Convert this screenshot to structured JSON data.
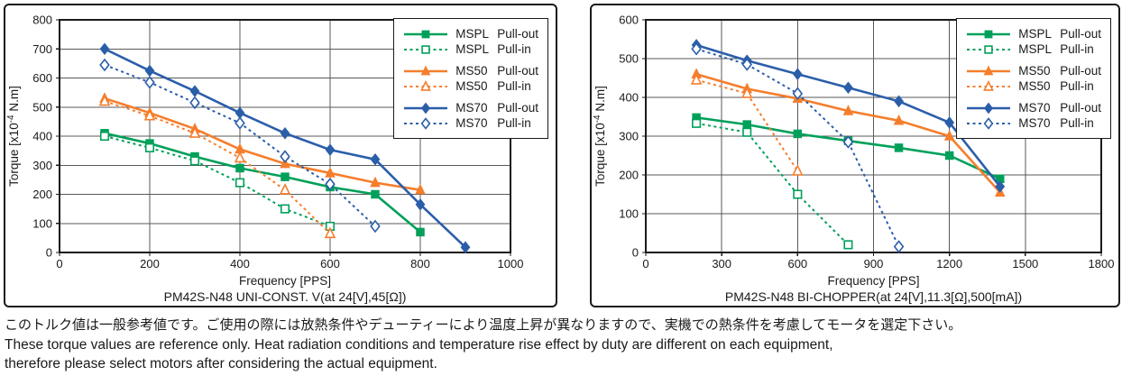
{
  "colors": {
    "mspl_green": "#00A05A",
    "ms50_orange": "#F57E2C",
    "ms70_blue": "#2B5EA9",
    "grid": "#58595B",
    "axis": "#1A1A1A",
    "legend_border": "#1A1A1A",
    "background": "#FFFFFF"
  },
  "footer": {
    "jp": "このトルク値は一般参考値です。ご使用の際には放熱条件やデューティーにより温度上昇が異なりますので、実機での熱条件を考慮してモータを選定下さい。",
    "en_line1": "These torque values are reference only. Heat radiation conditions and temperature rise effect by duty are different on each equipment,",
    "en_line2": "therefore please select motors after considering the actual equipment."
  },
  "chart_data": [
    {
      "type": "line",
      "title": "PM42S-N48 UNI-CONST. V(at 24[V],45[Ω])",
      "xlabel": "Frequency [PPS]",
      "ylabel": {
        "prefix": "Torque [x10",
        "sup": "-4",
        "suffix": " N.m]"
      },
      "xlim": [
        0,
        1000
      ],
      "ylim": [
        0,
        800
      ],
      "xticks": [
        0,
        200,
        400,
        600,
        800,
        1000
      ],
      "yticks": [
        0,
        100,
        200,
        300,
        400,
        500,
        600,
        700,
        800
      ],
      "grid": true,
      "legend_position": "top-right",
      "series": [
        {
          "name": "MSPL",
          "mode": "Pull-out",
          "color": "#00A05A",
          "line": "solid",
          "marker": "square",
          "marker_fill": "filled",
          "x": [
            100,
            200,
            300,
            400,
            500,
            600,
            700,
            800
          ],
          "y": [
            410,
            375,
            330,
            290,
            260,
            225,
            200,
            70
          ]
        },
        {
          "name": "MSPL",
          "mode": "Pull-in",
          "color": "#00A05A",
          "line": "dashed",
          "marker": "square",
          "marker_fill": "open",
          "x": [
            100,
            200,
            300,
            400,
            500,
            600
          ],
          "y": [
            400,
            360,
            315,
            240,
            150,
            90
          ]
        },
        {
          "name": "MS50",
          "mode": "Pull-out",
          "color": "#F57E2C",
          "line": "solid",
          "marker": "triangle",
          "marker_fill": "filled",
          "x": [
            100,
            200,
            300,
            400,
            500,
            600,
            700,
            800
          ],
          "y": [
            530,
            480,
            425,
            355,
            305,
            273,
            240,
            215
          ]
        },
        {
          "name": "MS50",
          "mode": "Pull-in",
          "color": "#F57E2C",
          "line": "dashed",
          "marker": "triangle",
          "marker_fill": "open",
          "x": [
            100,
            200,
            300,
            400,
            500,
            600
          ],
          "y": [
            520,
            470,
            410,
            325,
            215,
            65
          ]
        },
        {
          "name": "MS70",
          "mode": "Pull-out",
          "color": "#2B5EA9",
          "line": "solid",
          "marker": "diamond",
          "marker_fill": "filled",
          "x": [
            100,
            200,
            300,
            400,
            500,
            600,
            700,
            800,
            900
          ],
          "y": [
            700,
            625,
            555,
            480,
            410,
            353,
            320,
            165,
            18
          ]
        },
        {
          "name": "MS70",
          "mode": "Pull-in",
          "color": "#2B5EA9",
          "line": "dashed",
          "marker": "diamond",
          "marker_fill": "open",
          "x": [
            100,
            200,
            300,
            400,
            500,
            600,
            700
          ],
          "y": [
            645,
            585,
            515,
            445,
            330,
            235,
            90
          ]
        }
      ]
    },
    {
      "type": "line",
      "title": "PM42S-N48 BI-CHOPPER(at 24[V],11.3[Ω],500[mA])",
      "xlabel": "Frequency [PPS]",
      "ylabel": {
        "prefix": "Torque [x10",
        "sup": "-4",
        "suffix": " N.m]"
      },
      "xlim": [
        0,
        1800
      ],
      "ylim": [
        0,
        600
      ],
      "xticks": [
        0,
        300,
        600,
        900,
        1200,
        1500,
        1800
      ],
      "yticks": [
        0,
        100,
        200,
        300,
        400,
        500,
        600
      ],
      "grid": true,
      "legend_position": "top-right",
      "series": [
        {
          "name": "MSPL",
          "mode": "Pull-out",
          "color": "#00A05A",
          "line": "solid",
          "marker": "square",
          "marker_fill": "filled",
          "x": [
            200,
            400,
            600,
            800,
            1000,
            1200,
            1400
          ],
          "y": [
            348,
            330,
            306,
            288,
            270,
            250,
            190
          ]
        },
        {
          "name": "MSPL",
          "mode": "Pull-in",
          "color": "#00A05A",
          "line": "dashed",
          "marker": "square",
          "marker_fill": "open",
          "x": [
            200,
            400,
            600,
            800
          ],
          "y": [
            333,
            310,
            150,
            20
          ]
        },
        {
          "name": "MS50",
          "mode": "Pull-out",
          "color": "#F57E2C",
          "line": "solid",
          "marker": "triangle",
          "marker_fill": "filled",
          "x": [
            200,
            400,
            600,
            800,
            1000,
            1200,
            1400
          ],
          "y": [
            460,
            422,
            397,
            365,
            340,
            300,
            155
          ]
        },
        {
          "name": "MS50",
          "mode": "Pull-in",
          "color": "#F57E2C",
          "line": "dashed",
          "marker": "triangle",
          "marker_fill": "open",
          "x": [
            200,
            400,
            600
          ],
          "y": [
            445,
            410,
            210
          ]
        },
        {
          "name": "MS70",
          "mode": "Pull-out",
          "color": "#2B5EA9",
          "line": "solid",
          "marker": "diamond",
          "marker_fill": "filled",
          "x": [
            200,
            400,
            600,
            800,
            1000,
            1200,
            1400
          ],
          "y": [
            535,
            495,
            460,
            425,
            390,
            335,
            170
          ]
        },
        {
          "name": "MS70",
          "mode": "Pull-in",
          "color": "#2B5EA9",
          "line": "dashed",
          "marker": "diamond",
          "marker_fill": "open",
          "x": [
            200,
            400,
            600,
            800,
            1000
          ],
          "y": [
            525,
            485,
            410,
            285,
            15
          ]
        }
      ]
    }
  ]
}
